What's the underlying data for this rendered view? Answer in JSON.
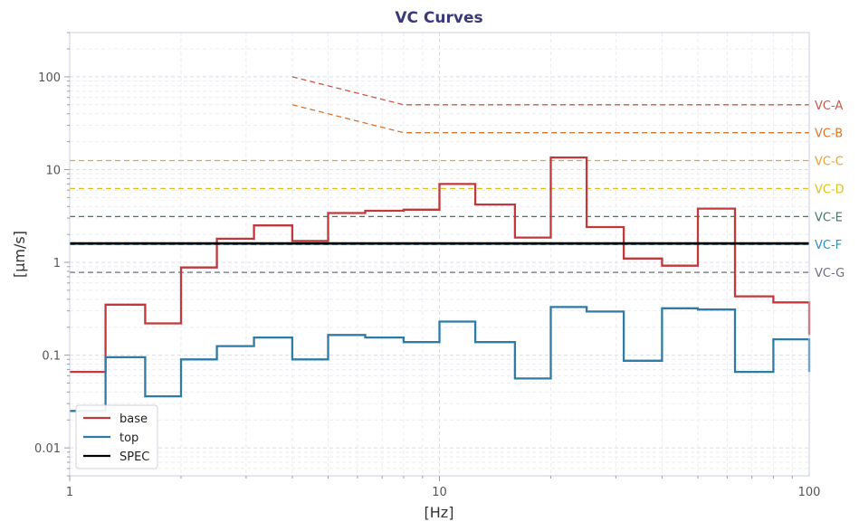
{
  "chart_data": {
    "type": "line",
    "title": "VC Curves",
    "xlabel": "[Hz]",
    "ylabel": "[µm/s]",
    "xscale": "log",
    "yscale": "log",
    "xlim": [
      1,
      100
    ],
    "ylim": [
      0.005,
      300
    ],
    "grid": true,
    "legend_position": "lower-left",
    "x_ticks": [
      {
        "value": 1,
        "label": "1"
      },
      {
        "value": 10,
        "label": "10"
      },
      {
        "value": 100,
        "label": "100"
      }
    ],
    "y_ticks": [
      {
        "value": 0.01,
        "label": "0.01"
      },
      {
        "value": 0.1,
        "label": "0.1"
      },
      {
        "value": 1,
        "label": "1"
      },
      {
        "value": 10,
        "label": "10"
      },
      {
        "value": 100,
        "label": "100"
      }
    ],
    "band_edges": [
      1,
      1.25,
      1.6,
      2,
      2.5,
      3.15,
      4,
      5,
      6.3,
      8,
      10,
      12.5,
      16,
      20,
      25,
      31.5,
      40,
      50,
      63,
      80,
      100
    ],
    "series": [
      {
        "name": "base",
        "color": "#c0393b",
        "style": "step",
        "values": [
          0.066,
          0.35,
          0.22,
          0.88,
          1.8,
          2.5,
          1.7,
          3.4,
          3.6,
          3.7,
          7.0,
          4.2,
          1.85,
          13.5,
          2.4,
          1.1,
          0.92,
          3.8,
          0.43,
          0.37
        ]
      },
      {
        "name": "top",
        "color": "#2e7ca6",
        "style": "step",
        "values": [
          0.025,
          0.095,
          0.036,
          0.09,
          0.125,
          0.155,
          0.09,
          0.165,
          0.155,
          0.138,
          0.23,
          0.138,
          0.056,
          0.33,
          0.295,
          0.087,
          0.32,
          0.31,
          0.066,
          0.148
        ]
      },
      {
        "name": "SPEC",
        "color": "#000000",
        "style": "hline",
        "value": 1.6
      }
    ],
    "vc_curves": [
      {
        "label": "VC-A",
        "color": "#c9574a",
        "points": [
          [
            4,
            100
          ],
          [
            8,
            50
          ],
          [
            100,
            50
          ]
        ]
      },
      {
        "label": "VC-B",
        "color": "#d9742c",
        "points": [
          [
            4,
            50
          ],
          [
            8,
            25
          ],
          [
            100,
            25
          ]
        ]
      },
      {
        "label": "VC-C",
        "color": "#e8a32a",
        "points": [
          [
            1,
            12.5
          ],
          [
            100,
            12.5
          ]
        ]
      },
      {
        "label": "VC-D",
        "color": "#d9c21e",
        "points": [
          [
            1,
            6.25
          ],
          [
            100,
            6.25
          ]
        ]
      },
      {
        "label": "VC-E",
        "color": "#3e7a5e",
        "points": [
          [
            1,
            3.12
          ],
          [
            100,
            3.12
          ]
        ]
      },
      {
        "label": "VC-F",
        "color": "#2e8fbf",
        "points": [
          [
            1,
            1.56
          ],
          [
            100,
            1.56
          ]
        ]
      },
      {
        "label": "VC-G",
        "color": "#6e6e84",
        "points": [
          [
            1,
            0.78
          ],
          [
            100,
            0.78
          ]
        ]
      }
    ]
  }
}
